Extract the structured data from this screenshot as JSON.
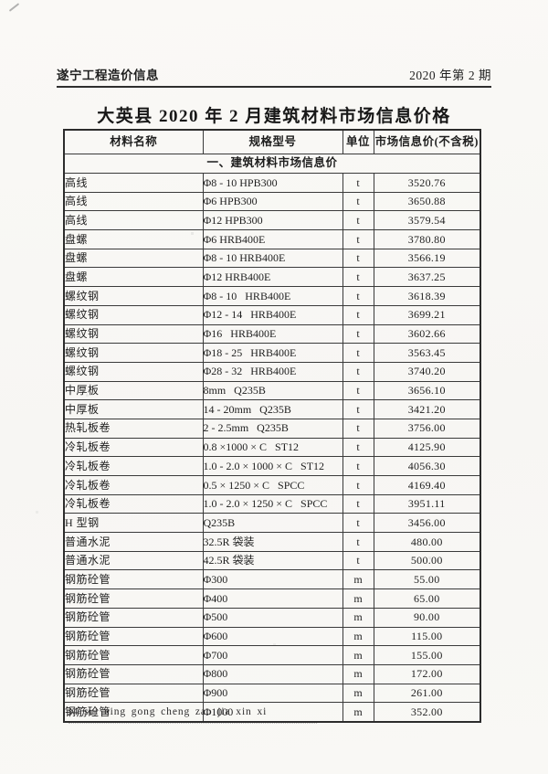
{
  "page": {
    "header_left": "遂宁工程造价信息",
    "header_right": "2020 年第 2 期",
    "title": "大英县 2020 年 2 月建筑材料市场信息价格",
    "footer": "34  sui ning gong cheng zao jia xin xi"
  },
  "colors": {
    "paper": "#f9f8f5",
    "ink": "#1f1f1f",
    "table_border": "#3a3a3a"
  },
  "table": {
    "columns": [
      "材料名称",
      "规格型号",
      "单位",
      "市场信息价(不含税)"
    ],
    "section_header": "一、建筑材料市场信息价",
    "rows": [
      {
        "name": "高线",
        "spec": "Φ8 - 10 HPB300",
        "unit": "t",
        "price": "3520.76"
      },
      {
        "name": "高线",
        "spec": "Φ6 HPB300",
        "unit": "t",
        "price": "3650.88"
      },
      {
        "name": "高线",
        "spec": "Φ12 HPB300",
        "unit": "t",
        "price": "3579.54"
      },
      {
        "name": "盘螺",
        "spec": "Φ6 HRB400E",
        "unit": "t",
        "price": "3780.80"
      },
      {
        "name": "盘螺",
        "spec": "Φ8 - 10 HRB400E",
        "unit": "t",
        "price": "3566.19"
      },
      {
        "name": "盘螺",
        "spec": "Φ12 HRB400E",
        "unit": "t",
        "price": "3637.25"
      },
      {
        "name": "螺纹钢",
        "spec": "Φ8 - 10   HRB400E",
        "unit": "t",
        "price": "3618.39"
      },
      {
        "name": "螺纹钢",
        "spec": "Φ12 - 14   HRB400E",
        "unit": "t",
        "price": "3699.21"
      },
      {
        "name": "螺纹钢",
        "spec": "Φ16   HRB400E",
        "unit": "t",
        "price": "3602.66"
      },
      {
        "name": "螺纹钢",
        "spec": "Φ18 - 25   HRB400E",
        "unit": "t",
        "price": "3563.45"
      },
      {
        "name": "螺纹钢",
        "spec": "Φ28 - 32   HRB400E",
        "unit": "t",
        "price": "3740.20"
      },
      {
        "name": "中厚板",
        "spec": "8mm   Q235B",
        "unit": "t",
        "price": "3656.10"
      },
      {
        "name": "中厚板",
        "spec": "14 - 20mm   Q235B",
        "unit": "t",
        "price": "3421.20"
      },
      {
        "name": "热轧板卷",
        "spec": "2 - 2.5mm   Q235B",
        "unit": "t",
        "price": "3756.00"
      },
      {
        "name": "冷轧板卷",
        "spec": "0.8 ×1000 × C   ST12",
        "unit": "t",
        "price": "4125.90"
      },
      {
        "name": "冷轧板卷",
        "spec": "1.0 - 2.0 × 1000 × C   ST12",
        "unit": "t",
        "price": "4056.30"
      },
      {
        "name": "冷轧板卷",
        "spec": "0.5 × 1250 × C   SPCC",
        "unit": "t",
        "price": "4169.40"
      },
      {
        "name": "冷轧板卷",
        "spec": "1.0 - 2.0 × 1250 × C   SPCC",
        "unit": "t",
        "price": "3951.11"
      },
      {
        "name": "H 型钢",
        "spec": "Q235B",
        "unit": "t",
        "price": "3456.00"
      },
      {
        "name": "普通水泥",
        "spec": "32.5R 袋装",
        "unit": "t",
        "price": "480.00"
      },
      {
        "name": "普通水泥",
        "spec": "42.5R 袋装",
        "unit": "t",
        "price": "500.00"
      },
      {
        "name": "钢筋砼管",
        "spec": "Φ300",
        "unit": "m",
        "price": "55.00"
      },
      {
        "name": "钢筋砼管",
        "spec": "Φ400",
        "unit": "m",
        "price": "65.00"
      },
      {
        "name": "钢筋砼管",
        "spec": "Φ500",
        "unit": "m",
        "price": "90.00"
      },
      {
        "name": "钢筋砼管",
        "spec": "Φ600",
        "unit": "m",
        "price": "115.00"
      },
      {
        "name": "钢筋砼管",
        "spec": "Φ700",
        "unit": "m",
        "price": "155.00"
      },
      {
        "name": "钢筋砼管",
        "spec": "Φ800",
        "unit": "m",
        "price": "172.00"
      },
      {
        "name": "钢筋砼管",
        "spec": "Φ900",
        "unit": "m",
        "price": "261.00"
      },
      {
        "name": "钢筋砼管",
        "spec": "Φ1000",
        "unit": "m",
        "price": "352.00"
      }
    ]
  }
}
